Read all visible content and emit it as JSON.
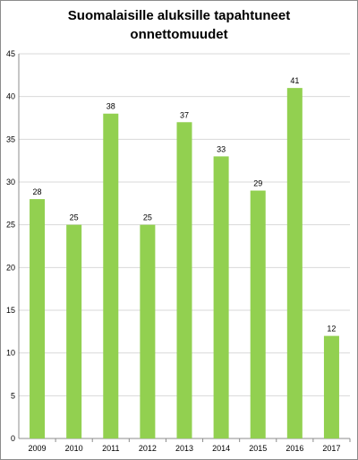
{
  "chart_data": {
    "type": "bar",
    "title_line1": "Suomalaisille aluksille tapahtuneet",
    "title_line2": "onnettomuudet",
    "categories": [
      "2009",
      "2010",
      "2011",
      "2012",
      "2013",
      "2014",
      "2015",
      "2016",
      "2017"
    ],
    "values": [
      28,
      25,
      38,
      25,
      37,
      33,
      29,
      41,
      12
    ],
    "ylim": [
      0,
      45
    ],
    "yticks": [
      0,
      5,
      10,
      15,
      20,
      25,
      30,
      35,
      40,
      45
    ],
    "grid": true,
    "data_labels": true,
    "bar_color": "#92d050",
    "grid_color": "#d9d9d9"
  }
}
